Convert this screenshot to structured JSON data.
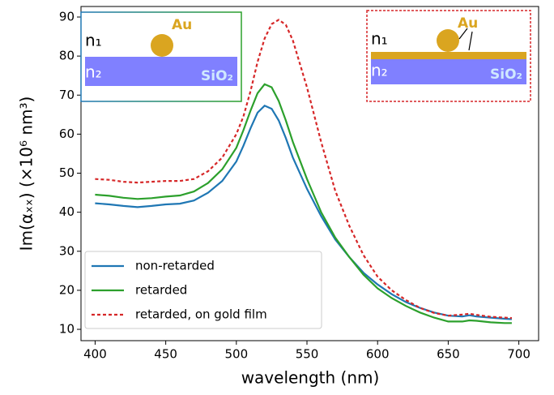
{
  "chart_data": {
    "type": "line",
    "xlabel": "wavelength (nm)",
    "ylabel": "Im(αₓₓ) (×10⁶ nm³)",
    "x": [
      400,
      410,
      420,
      430,
      440,
      450,
      460,
      470,
      480,
      490,
      500,
      505,
      510,
      515,
      520,
      525,
      530,
      535,
      540,
      550,
      560,
      570,
      580,
      590,
      600,
      610,
      620,
      630,
      640,
      650,
      660,
      665,
      670,
      680,
      690,
      695
    ],
    "series": [
      {
        "name": "non-retarded",
        "color": "#1f77b4",
        "linestyle": "solid",
        "values": [
          42.3,
          42,
          41.6,
          41.3,
          41.6,
          42,
          42.2,
          43,
          45,
          48,
          53,
          57,
          61.5,
          65.5,
          67.3,
          66.5,
          63.5,
          59,
          54,
          46,
          39,
          33,
          28.5,
          24.5,
          21.5,
          19,
          17,
          15.5,
          14.3,
          13.5,
          13.3,
          13.6,
          13.3,
          13,
          12.7,
          12.6
        ]
      },
      {
        "name": "retarded",
        "color": "#2ca02c",
        "linestyle": "solid",
        "values": [
          44.5,
          44.2,
          43.7,
          43.4,
          43.6,
          44,
          44.3,
          45.3,
          47.5,
          51,
          56.5,
          61,
          66,
          70.5,
          72.8,
          72,
          68.5,
          63.5,
          58,
          48.5,
          40,
          33.5,
          28.5,
          24,
          20.5,
          18,
          16,
          14.3,
          13,
          12,
          12,
          12.3,
          12.2,
          11.8,
          11.6,
          11.6
        ]
      },
      {
        "name": "retarded, on gold film",
        "color": "#d62728",
        "linestyle": "dashed",
        "values": [
          48.5,
          48.3,
          47.8,
          47.6,
          47.8,
          48,
          48,
          48.5,
          50.5,
          54,
          60,
          64.5,
          71,
          78.5,
          84.5,
          88.2,
          89.3,
          88,
          84,
          72,
          58,
          45.5,
          36.5,
          29,
          23.5,
          20,
          17.5,
          15.5,
          14.2,
          13.5,
          13.8,
          14,
          13.7,
          13.2,
          13,
          12.9
        ]
      }
    ],
    "xlim": [
      390,
      714
    ],
    "ylim": [
      7.1,
      92.7
    ],
    "xticks": [
      400,
      450,
      500,
      550,
      600,
      650,
      700
    ],
    "yticks": [
      10,
      20,
      30,
      40,
      50,
      60,
      70,
      80,
      90
    ],
    "legend": "lower left",
    "insets": [
      {
        "labels": [
          "n₁",
          "n₂",
          "Au",
          "SiO₂"
        ]
      },
      {
        "labels": [
          "n₁",
          "n₂",
          "Au",
          "SiO₂"
        ]
      }
    ]
  }
}
